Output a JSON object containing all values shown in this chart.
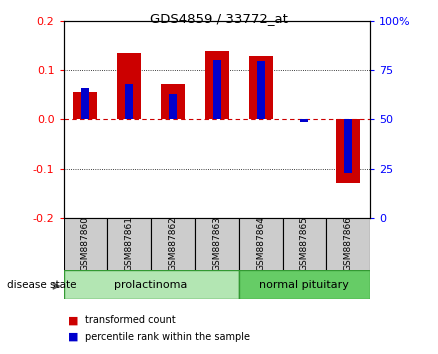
{
  "title": "GDS4859 / 33772_at",
  "samples": [
    "GSM887860",
    "GSM887861",
    "GSM887862",
    "GSM887863",
    "GSM887864",
    "GSM887865",
    "GSM887866"
  ],
  "red_values": [
    0.055,
    0.135,
    0.072,
    0.14,
    0.13,
    0.0,
    -0.13
  ],
  "blue_values": [
    0.065,
    0.072,
    0.052,
    0.122,
    0.12,
    -0.005,
    -0.108
  ],
  "ylim_left": [
    -0.2,
    0.2
  ],
  "ylim_right": [
    0,
    100
  ],
  "yticks_left": [
    -0.2,
    -0.1,
    0.0,
    0.1,
    0.2
  ],
  "yticks_right": [
    0,
    25,
    50,
    75,
    100
  ],
  "ytick_labels_right": [
    "0",
    "25",
    "50",
    "75",
    "100%"
  ],
  "group1_label": "prolactinoma",
  "group2_label": "normal pituitary",
  "group1_indices": [
    0,
    1,
    2,
    3
  ],
  "group2_indices": [
    4,
    5,
    6
  ],
  "disease_state_label": "disease state",
  "legend_red": "transformed count",
  "legend_blue": "percentile rank within the sample",
  "red_color": "#cc0000",
  "blue_color": "#0000cc",
  "group1_color": "#b3e6b3",
  "group2_color": "#66cc66",
  "bg_color": "#cccccc",
  "zero_line_color": "#cc0000",
  "dot_line_color": "#000000"
}
